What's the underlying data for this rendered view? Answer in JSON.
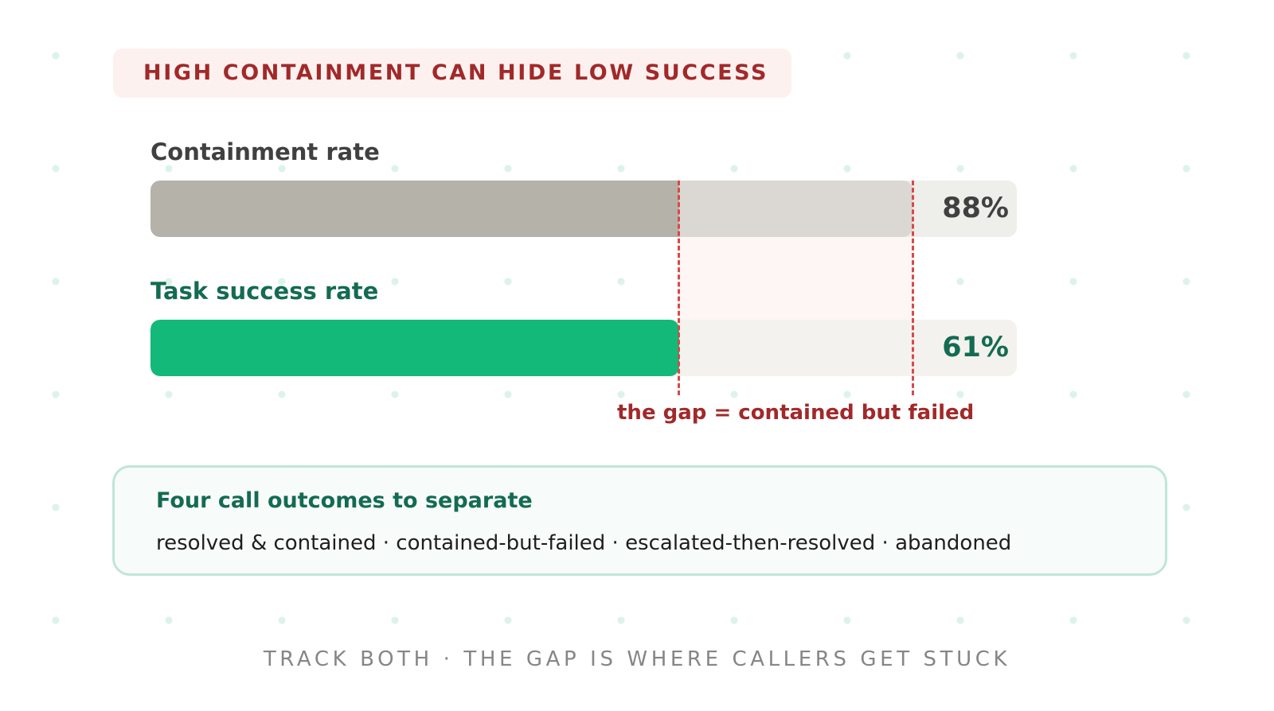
{
  "banner": {
    "title": "HIGH CONTAINMENT CAN HIDE LOW SUCCESS"
  },
  "chart_data": {
    "type": "bar",
    "orientation": "horizontal",
    "xlim": [
      0,
      100
    ],
    "categories": [
      "Containment rate",
      "Task success rate"
    ],
    "values": [
      88,
      61
    ],
    "value_labels": [
      "88%",
      "61%"
    ],
    "colors": {
      "containment": "#b5b2aa",
      "success": "#12b979",
      "gap_line": "#d9484a"
    },
    "gap": {
      "from": 61,
      "to": 88,
      "caption": "the gap = contained but failed"
    }
  },
  "outcomes": {
    "title": "Four call outcomes to separate",
    "body": "resolved & contained · contained-but-failed · escalated-then-resolved · abandoned"
  },
  "footer": {
    "text": "TRACK BOTH · THE GAP IS WHERE CALLERS GET STUCK"
  }
}
